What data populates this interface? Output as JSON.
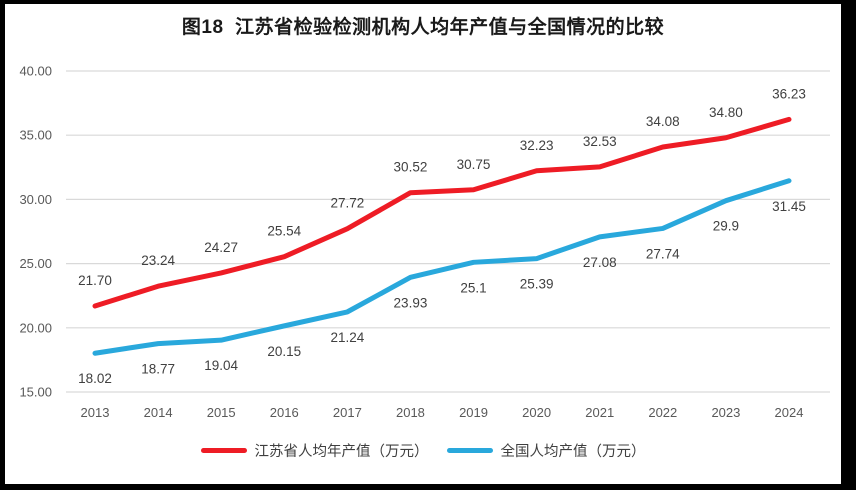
{
  "window": {
    "background": "#000000",
    "panel_background": "#ffffff"
  },
  "chart_data": {
    "type": "line",
    "title": "图18  江苏省检验检测机构人均年产值与全国情况的比较",
    "categories": [
      "2013",
      "2014",
      "2015",
      "2016",
      "2017",
      "2018",
      "2019",
      "2020",
      "2021",
      "2022",
      "2023",
      "2024"
    ],
    "series": [
      {
        "name": "江苏省人均年产值（万元）",
        "color": "#ee1c25",
        "values": [
          21.7,
          23.24,
          24.27,
          25.54,
          27.72,
          30.52,
          30.75,
          32.23,
          32.53,
          34.08,
          34.8,
          36.23
        ],
        "labels": [
          "21.70",
          "23.24",
          "24.27",
          "25.54",
          "27.72",
          "30.52",
          "30.75",
          "32.23",
          "32.53",
          "34.08",
          "34.80",
          "36.23"
        ],
        "label_position": "above"
      },
      {
        "name": "全国人均产值（万元）",
        "color": "#29a8dc",
        "values": [
          18.02,
          18.77,
          19.04,
          20.15,
          21.24,
          23.93,
          25.1,
          25.39,
          27.08,
          27.74,
          29.9,
          31.45
        ],
        "labels": [
          "18.02",
          "18.77",
          "19.04",
          "20.15",
          "21.24",
          "23.93",
          "25.1",
          "25.39",
          "27.08",
          "27.74",
          "29.9",
          "31.45"
        ],
        "label_position": "below"
      }
    ],
    "y_ticks": [
      "40.00",
      "35.00",
      "30.00",
      "25.00",
      "20.00",
      "15.00"
    ],
    "ylim": [
      15,
      40
    ],
    "grid": true,
    "legend_position": "bottom",
    "styles": {
      "gridline_color": "#d9d9d9",
      "tick_label_color": "#595959",
      "data_label_color": "#404040",
      "title_color": "#1a1a1a"
    }
  }
}
